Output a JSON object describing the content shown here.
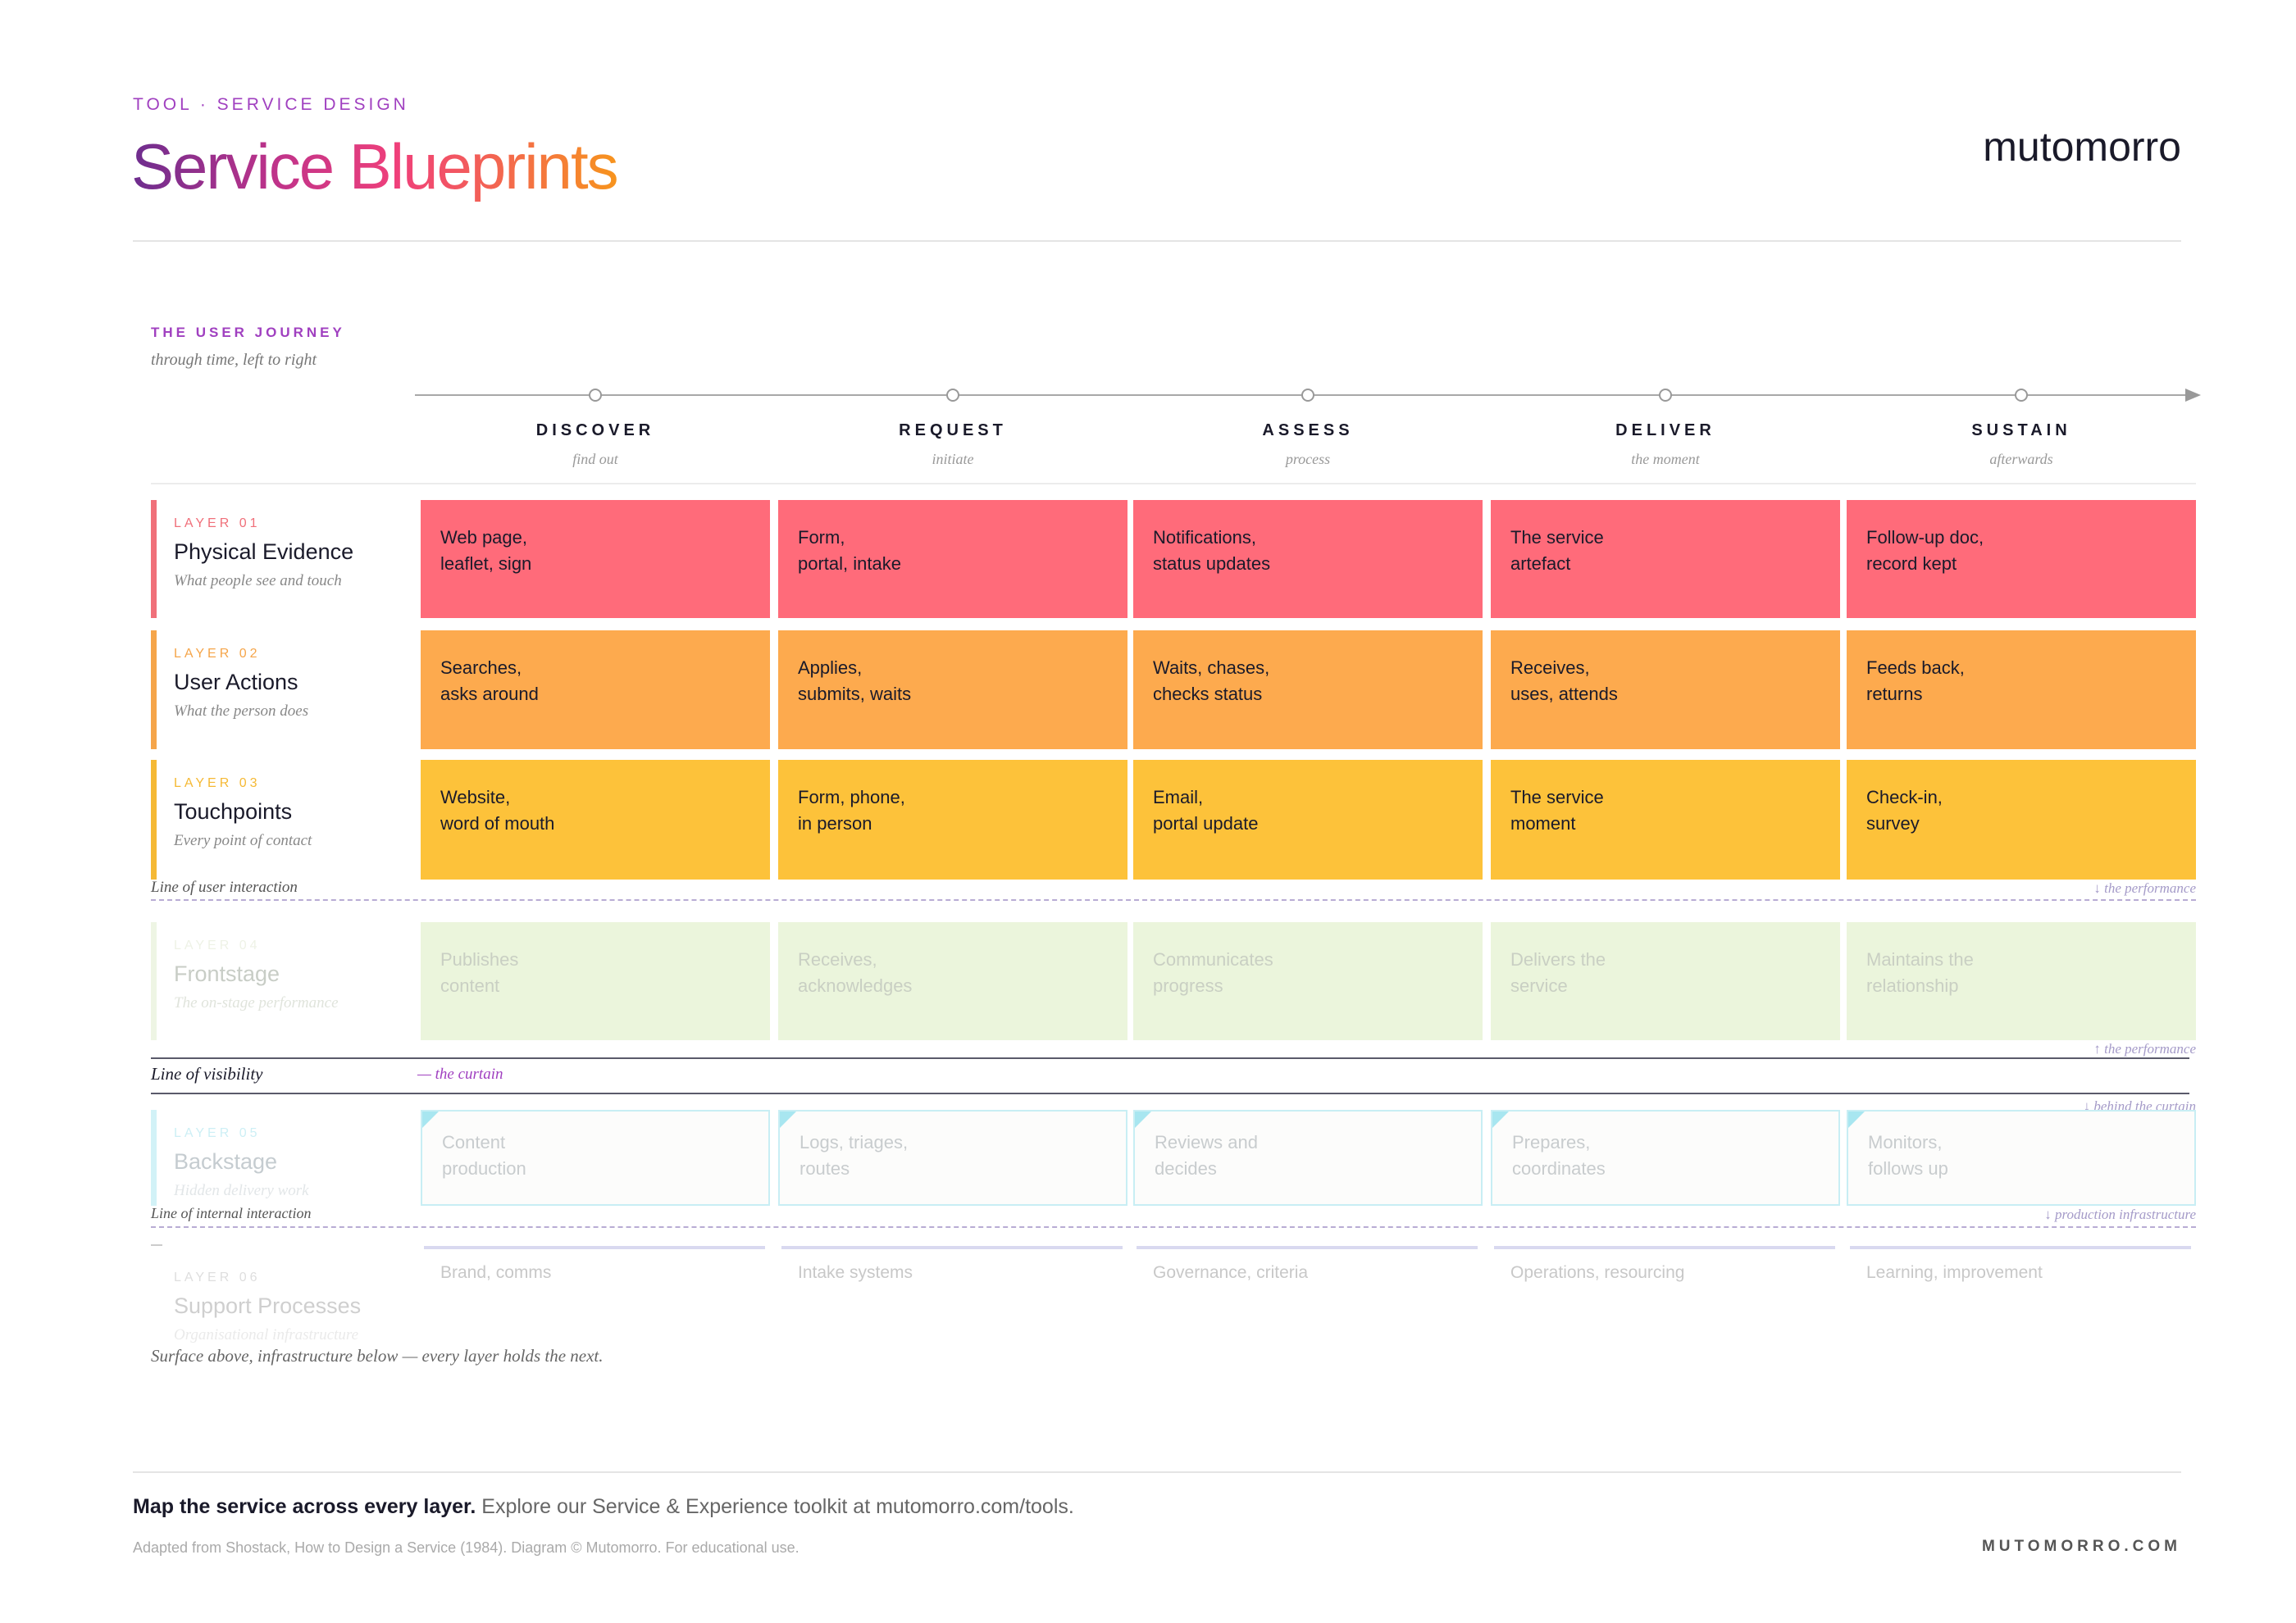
{
  "header": {
    "eyebrow": "TOOL · SERVICE DESIGN",
    "title": "Service Blueprints",
    "brand": "mutomorro"
  },
  "journey": {
    "label": "THE USER JOURNEY",
    "sublabel": "through time, left to right",
    "stages": [
      {
        "name": "DISCOVER",
        "sub": "find out"
      },
      {
        "name": "REQUEST",
        "sub": "initiate"
      },
      {
        "name": "ASSESS",
        "sub": "process"
      },
      {
        "name": "DELIVER",
        "sub": "the moment"
      },
      {
        "name": "SUSTAIN",
        "sub": "afterwards"
      }
    ]
  },
  "layers": [
    {
      "number": "LAYER 01",
      "name": "Physical Evidence",
      "description": "What people see and touch",
      "cells": [
        "Web page,\nleaflet, sign",
        "Form,\nportal, intake",
        "Notifications,\nstatus updates",
        "The service\nartefact",
        "Follow-up doc,\nrecord kept"
      ]
    },
    {
      "number": "LAYER 02",
      "name": "User Actions",
      "description": "What the person does",
      "cells": [
        "Searches,\nasks around",
        "Applies,\nsubmits, waits",
        "Waits, chases,\nchecks status",
        "Receives,\nuses, attends",
        "Feeds back,\nreturns"
      ]
    },
    {
      "number": "LAYER 03",
      "name": "Touchpoints",
      "description": "Every point of contact",
      "cells": [
        "Website,\nword of mouth",
        "Form, phone,\nin person",
        "Email,\nportal update",
        "The service\nmoment",
        "Check-in,\nsurvey"
      ]
    },
    {
      "number": "LAYER 04",
      "name": "Frontstage",
      "description": "The on-stage performance",
      "cells": [
        "Publishes\ncontent",
        "Receives,\nacknowledges",
        "Communicates\nprogress",
        "Delivers the\nservice",
        "Maintains the\nrelationship"
      ]
    },
    {
      "number": "LAYER 05",
      "name": "Backstage",
      "description": "Hidden delivery work",
      "cells": [
        "Content\nproduction",
        "Logs, triages,\nroutes",
        "Reviews and\ndecides",
        "Prepares,\ncoordinates",
        "Monitors,\nfollows up"
      ]
    },
    {
      "number": "LAYER 06",
      "name": "Support Processes",
      "description": "Organisational infrastructure",
      "cells": [
        "Brand, comms",
        "Intake systems",
        "Governance, criteria",
        "Operations, resourcing",
        "Learning, improvement"
      ]
    }
  ],
  "lines": {
    "user_interaction": {
      "label": "Line of user interaction",
      "note": "↓ the performance"
    },
    "frontstage_note": "↑ the performance",
    "visibility": {
      "label": "Line of visibility",
      "note": "— the curtain",
      "below_note": "↓ behind the curtain"
    },
    "internal_interaction": {
      "label": "Line of internal interaction",
      "note": "↓ production infrastructure"
    }
  },
  "caption": "Surface above, infrastructure below — every layer holds the next.",
  "footer": {
    "cta_bold": "Map the service across every layer.",
    "cta_rest": "Explore our Service & Experience toolkit at mutomorro.com/tools.",
    "credit": "Adapted from Shostack, How to Design a Service (1984). Diagram © Mutomorro. For educational use.",
    "site": "MUTOMORRO.COM"
  }
}
